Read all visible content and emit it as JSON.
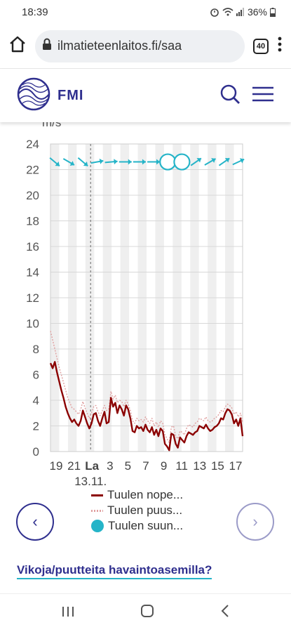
{
  "status": {
    "time": "18:39",
    "battery": "36%"
  },
  "browser": {
    "url": "ilmatieteenlaitos.fi/saa",
    "tab_count": "40"
  },
  "header": {
    "logo_text": "FMI"
  },
  "chart_unit": "m/s",
  "chart_data": {
    "type": "line",
    "ylim": [
      0,
      24
    ],
    "yticks": [
      0,
      2,
      4,
      6,
      8,
      10,
      12,
      14,
      16,
      18,
      20,
      22,
      24
    ],
    "xticks": [
      "19",
      "21",
      "La",
      "3",
      "5",
      "7",
      "9",
      "11",
      "13",
      "15",
      "17"
    ],
    "day_label": "13.11.",
    "grid": true,
    "series": [
      {
        "name": "Tuulen nope...",
        "color": "#8b0000",
        "values": [
          6.9,
          6.5,
          7.0,
          6.2,
          5.5,
          4.8,
          4.2,
          3.5,
          3.0,
          2.6,
          2.3,
          2.5,
          2.2,
          2.0,
          2.4,
          3.2,
          2.7,
          2.2,
          1.8,
          2.2,
          2.9,
          3.0,
          2.4,
          2.0,
          2.6,
          3.1,
          2.2,
          2.3,
          4.2,
          3.5,
          3.8,
          3.0,
          3.6,
          3.3,
          2.8,
          3.6,
          3.3,
          2.6,
          1.6,
          1.5,
          2.0,
          1.8,
          1.9,
          1.6,
          2.1,
          1.7,
          1.5,
          1.9,
          1.3,
          1.7,
          1.2,
          1.8,
          1.6,
          0.6,
          0.4,
          0.1,
          1.4,
          1.3,
          0.6,
          0.3,
          1.1,
          0.9,
          0.7,
          1.2,
          1.5,
          1.4,
          1.3,
          1.5,
          1.6,
          2.0,
          1.9,
          1.8,
          2.1,
          1.8,
          1.6,
          1.7,
          1.9,
          2.0,
          2.2,
          2.6,
          2.5,
          3.0,
          3.3,
          3.2,
          2.9,
          2.2,
          2.5,
          2.0,
          2.6,
          1.2
        ]
      },
      {
        "name": "Tuulen puus...",
        "color": "#e0a0a0",
        "values": [
          9.4,
          8.7,
          8.0,
          7.3,
          6.6,
          6.0,
          5.4,
          4.8,
          4.2,
          3.8,
          3.4,
          3.3,
          3.1,
          2.9,
          3.3,
          3.9,
          3.4,
          3.0,
          2.6,
          3.0,
          3.5,
          3.6,
          3.1,
          2.8,
          3.2,
          3.6,
          3.2,
          3.3,
          4.7,
          4.1,
          4.4,
          3.8,
          4.0,
          3.9,
          3.5,
          4.0,
          3.7,
          3.2,
          2.4,
          2.2,
          2.6,
          2.4,
          2.5,
          2.3,
          2.7,
          2.4,
          2.2,
          2.6,
          2.0,
          2.3,
          1.9,
          2.4,
          2.2,
          1.3,
          1.0,
          0.7,
          1.9,
          2.0,
          1.2,
          1.0,
          1.6,
          1.5,
          1.3,
          1.8,
          2.1,
          2.0,
          1.9,
          2.2,
          2.3,
          2.6,
          2.5,
          2.4,
          2.7,
          2.4,
          2.3,
          2.4,
          2.6,
          2.7,
          2.9,
          3.2,
          3.1,
          3.5,
          3.7,
          3.6,
          3.4,
          2.9,
          3.1,
          2.7,
          3.0,
          2.3
        ]
      },
      {
        "name": "Tuulen suun...",
        "color": "#25b4c8",
        "values": []
      }
    ]
  },
  "legend": [
    {
      "label": "Tuulen nope...",
      "color": "#8b0000",
      "kind": "line"
    },
    {
      "label": "Tuulen puus...",
      "color": "#e0a0a0",
      "kind": "dotted"
    },
    {
      "label": "Tuulen suun...",
      "color": "#25b4c8",
      "kind": "circle"
    }
  ],
  "footer_link": "Vikoja/puutteita havaintoasemilla?"
}
